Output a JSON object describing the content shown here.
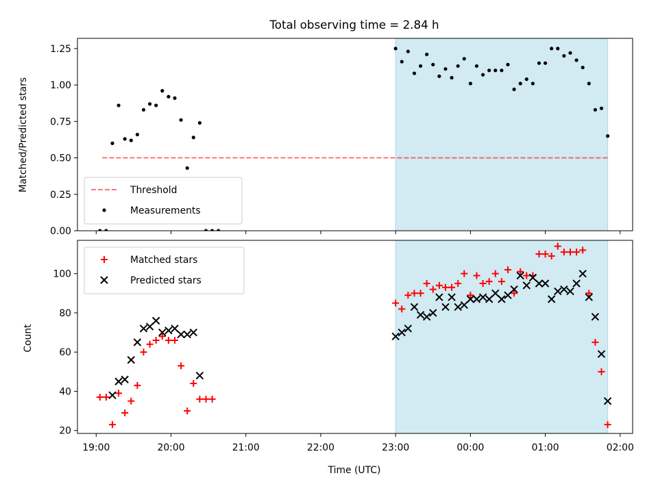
{
  "figure": {
    "title": "Total observing time = 2.84 h",
    "xlabel": "Time (UTC)",
    "x_ticks": [
      "19:00",
      "20:00",
      "21:00",
      "22:00",
      "23:00",
      "00:00",
      "01:00",
      "02:00"
    ],
    "colors": {
      "shade": "#add8e6",
      "threshold": "#ff0000",
      "measurements": "#000000",
      "matched": "#ff0000",
      "predicted": "#000000"
    }
  },
  "chart_data": [
    {
      "type": "scatter",
      "panel": "top",
      "ylabel": "Matched/Predicted stars",
      "ylim": [
        0,
        1.32
      ],
      "y_ticks": [
        "0.00",
        "0.25",
        "0.50",
        "0.75",
        "1.00",
        "1.25"
      ],
      "xlim": [
        "18:45",
        "02:10"
      ],
      "shaded_interval": [
        "23:00",
        "01:50"
      ],
      "threshold": {
        "name": "Threshold",
        "y": 0.5,
        "x_range": [
          "19:05",
          "01:50"
        ],
        "style": "dashed"
      },
      "legend": {
        "position": "lower-left",
        "entries": [
          "Threshold",
          "Measurements"
        ]
      },
      "series": [
        {
          "name": "Measurements",
          "marker": "dot",
          "points": [
            {
              "x": "19:03",
              "y": 0.0
            },
            {
              "x": "19:08",
              "y": 0.0
            },
            {
              "x": "19:13",
              "y": 0.6
            },
            {
              "x": "19:18",
              "y": 0.86
            },
            {
              "x": "19:23",
              "y": 0.63
            },
            {
              "x": "19:28",
              "y": 0.62
            },
            {
              "x": "19:33",
              "y": 0.66
            },
            {
              "x": "19:38",
              "y": 0.83
            },
            {
              "x": "19:43",
              "y": 0.87
            },
            {
              "x": "19:48",
              "y": 0.86
            },
            {
              "x": "19:53",
              "y": 0.96
            },
            {
              "x": "19:58",
              "y": 0.92
            },
            {
              "x": "20:03",
              "y": 0.91
            },
            {
              "x": "20:08",
              "y": 0.76
            },
            {
              "x": "20:13",
              "y": 0.43
            },
            {
              "x": "20:18",
              "y": 0.64
            },
            {
              "x": "20:23",
              "y": 0.74
            },
            {
              "x": "20:28",
              "y": 0.0
            },
            {
              "x": "20:33",
              "y": 0.0
            },
            {
              "x": "20:38",
              "y": 0.0
            },
            {
              "x": "23:00",
              "y": 1.25
            },
            {
              "x": "23:05",
              "y": 1.16
            },
            {
              "x": "23:10",
              "y": 1.23
            },
            {
              "x": "23:15",
              "y": 1.08
            },
            {
              "x": "23:20",
              "y": 1.13
            },
            {
              "x": "23:25",
              "y": 1.21
            },
            {
              "x": "23:30",
              "y": 1.14
            },
            {
              "x": "23:35",
              "y": 1.06
            },
            {
              "x": "23:40",
              "y": 1.11
            },
            {
              "x": "23:45",
              "y": 1.05
            },
            {
              "x": "23:50",
              "y": 1.13
            },
            {
              "x": "23:55",
              "y": 1.18
            },
            {
              "x": "00:00",
              "y": 1.01
            },
            {
              "x": "00:05",
              "y": 1.13
            },
            {
              "x": "00:10",
              "y": 1.07
            },
            {
              "x": "00:15",
              "y": 1.1
            },
            {
              "x": "00:20",
              "y": 1.1
            },
            {
              "x": "00:25",
              "y": 1.1
            },
            {
              "x": "00:30",
              "y": 1.14
            },
            {
              "x": "00:35",
              "y": 0.97
            },
            {
              "x": "00:40",
              "y": 1.01
            },
            {
              "x": "00:45",
              "y": 1.04
            },
            {
              "x": "00:50",
              "y": 1.01
            },
            {
              "x": "00:55",
              "y": 1.15
            },
            {
              "x": "01:00",
              "y": 1.15
            },
            {
              "x": "01:05",
              "y": 1.25
            },
            {
              "x": "01:10",
              "y": 1.25
            },
            {
              "x": "01:15",
              "y": 1.2
            },
            {
              "x": "01:20",
              "y": 1.22
            },
            {
              "x": "01:25",
              "y": 1.17
            },
            {
              "x": "01:30",
              "y": 1.12
            },
            {
              "x": "01:35",
              "y": 1.01
            },
            {
              "x": "01:40",
              "y": 0.83
            },
            {
              "x": "01:45",
              "y": 0.84
            },
            {
              "x": "01:50",
              "y": 0.65
            }
          ]
        }
      ]
    },
    {
      "type": "scatter",
      "panel": "bottom",
      "ylabel": "Count",
      "ylim": [
        18.5,
        117
      ],
      "y_ticks": [
        "20",
        "40",
        "60",
        "80",
        "100"
      ],
      "xlim": [
        "18:45",
        "02:10"
      ],
      "shaded_interval": [
        "23:00",
        "01:50"
      ],
      "legend": {
        "position": "upper-left",
        "entries": [
          "Matched stars",
          "Predicted stars"
        ]
      },
      "series": [
        {
          "name": "Matched stars",
          "marker": "plus",
          "points": [
            {
              "x": "19:03",
              "y": 37
            },
            {
              "x": "19:08",
              "y": 37
            },
            {
              "x": "19:13",
              "y": 23
            },
            {
              "x": "19:18",
              "y": 39
            },
            {
              "x": "19:23",
              "y": 29
            },
            {
              "x": "19:28",
              "y": 35
            },
            {
              "x": "19:33",
              "y": 43
            },
            {
              "x": "19:38",
              "y": 60
            },
            {
              "x": "19:43",
              "y": 64
            },
            {
              "x": "19:48",
              "y": 66
            },
            {
              "x": "19:53",
              "y": 68
            },
            {
              "x": "19:58",
              "y": 66
            },
            {
              "x": "20:03",
              "y": 66
            },
            {
              "x": "20:08",
              "y": 53
            },
            {
              "x": "20:13",
              "y": 30
            },
            {
              "x": "20:18",
              "y": 44
            },
            {
              "x": "20:23",
              "y": 36
            },
            {
              "x": "20:28",
              "y": 36
            },
            {
              "x": "20:33",
              "y": 36
            },
            {
              "x": "23:00",
              "y": 85
            },
            {
              "x": "23:05",
              "y": 82
            },
            {
              "x": "23:10",
              "y": 89
            },
            {
              "x": "23:15",
              "y": 90
            },
            {
              "x": "23:20",
              "y": 90
            },
            {
              "x": "23:25",
              "y": 95
            },
            {
              "x": "23:30",
              "y": 92
            },
            {
              "x": "23:35",
              "y": 94
            },
            {
              "x": "23:40",
              "y": 93
            },
            {
              "x": "23:45",
              "y": 93
            },
            {
              "x": "23:50",
              "y": 95
            },
            {
              "x": "23:55",
              "y": 100
            },
            {
              "x": "00:00",
              "y": 89
            },
            {
              "x": "00:05",
              "y": 99
            },
            {
              "x": "00:10",
              "y": 95
            },
            {
              "x": "00:15",
              "y": 96
            },
            {
              "x": "00:20",
              "y": 100
            },
            {
              "x": "00:25",
              "y": 96
            },
            {
              "x": "00:30",
              "y": 102
            },
            {
              "x": "00:35",
              "y": 90
            },
            {
              "x": "00:40",
              "y": 101
            },
            {
              "x": "00:45",
              "y": 99
            },
            {
              "x": "00:50",
              "y": 99
            },
            {
              "x": "00:55",
              "y": 110
            },
            {
              "x": "01:00",
              "y": 110
            },
            {
              "x": "01:05",
              "y": 109
            },
            {
              "x": "01:10",
              "y": 114
            },
            {
              "x": "01:15",
              "y": 111
            },
            {
              "x": "01:20",
              "y": 111
            },
            {
              "x": "01:25",
              "y": 111
            },
            {
              "x": "01:30",
              "y": 112
            },
            {
              "x": "01:35",
              "y": 90
            },
            {
              "x": "01:40",
              "y": 65
            },
            {
              "x": "01:45",
              "y": 50
            },
            {
              "x": "01:50",
              "y": 23
            }
          ]
        },
        {
          "name": "Predicted stars",
          "marker": "x",
          "points": [
            {
              "x": "19:13",
              "y": 38
            },
            {
              "x": "19:18",
              "y": 45
            },
            {
              "x": "19:23",
              "y": 46
            },
            {
              "x": "19:28",
              "y": 56
            },
            {
              "x": "19:33",
              "y": 65
            },
            {
              "x": "19:38",
              "y": 72
            },
            {
              "x": "19:43",
              "y": 73
            },
            {
              "x": "19:48",
              "y": 76
            },
            {
              "x": "19:53",
              "y": 70
            },
            {
              "x": "19:58",
              "y": 71
            },
            {
              "x": "20:03",
              "y": 72
            },
            {
              "x": "20:08",
              "y": 69
            },
            {
              "x": "20:13",
              "y": 69
            },
            {
              "x": "20:18",
              "y": 70
            },
            {
              "x": "20:23",
              "y": 48
            },
            {
              "x": "23:00",
              "y": 68
            },
            {
              "x": "23:05",
              "y": 70
            },
            {
              "x": "23:10",
              "y": 72
            },
            {
              "x": "23:15",
              "y": 83
            },
            {
              "x": "23:20",
              "y": 79
            },
            {
              "x": "23:25",
              "y": 78
            },
            {
              "x": "23:30",
              "y": 80
            },
            {
              "x": "23:35",
              "y": 88
            },
            {
              "x": "23:40",
              "y": 83
            },
            {
              "x": "23:45",
              "y": 88
            },
            {
              "x": "23:50",
              "y": 83
            },
            {
              "x": "23:55",
              "y": 84
            },
            {
              "x": "00:00",
              "y": 87
            },
            {
              "x": "00:05",
              "y": 87
            },
            {
              "x": "00:10",
              "y": 88
            },
            {
              "x": "00:15",
              "y": 87
            },
            {
              "x": "00:20",
              "y": 90
            },
            {
              "x": "00:25",
              "y": 87
            },
            {
              "x": "00:30",
              "y": 89
            },
            {
              "x": "00:35",
              "y": 92
            },
            {
              "x": "00:40",
              "y": 99
            },
            {
              "x": "00:45",
              "y": 94
            },
            {
              "x": "00:50",
              "y": 98
            },
            {
              "x": "00:55",
              "y": 95
            },
            {
              "x": "01:00",
              "y": 95
            },
            {
              "x": "01:05",
              "y": 87
            },
            {
              "x": "01:10",
              "y": 91
            },
            {
              "x": "01:15",
              "y": 92
            },
            {
              "x": "01:20",
              "y": 91
            },
            {
              "x": "01:25",
              "y": 95
            },
            {
              "x": "01:30",
              "y": 100
            },
            {
              "x": "01:35",
              "y": 88
            },
            {
              "x": "01:40",
              "y": 78
            },
            {
              "x": "01:45",
              "y": 59
            },
            {
              "x": "01:50",
              "y": 35
            }
          ]
        }
      ]
    }
  ]
}
